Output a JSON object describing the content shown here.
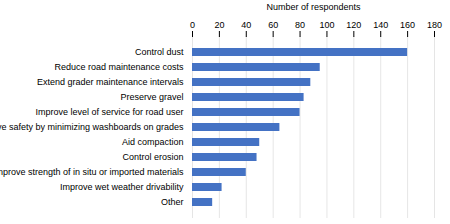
{
  "chart_data": {
    "type": "bar",
    "orientation": "horizontal",
    "categories": [
      "Other",
      "Improve wet weather drivability",
      "Improve strength of in situ or imported materials",
      "Control erosion",
      "Aid compaction",
      "Improve safety by minimizing washboards on grades",
      "Improve level of service for road user",
      "Preserve gravel",
      "Extend grader maintenance intervals",
      "Reduce road maintenance costs",
      "Control dust"
    ],
    "values": [
      15,
      22,
      40,
      48,
      50,
      65,
      80,
      83,
      88,
      95,
      160
    ],
    "color": "#4472C4",
    "xlabel": "Number of respondents",
    "xlim": [
      0,
      180
    ],
    "xticks": [
      0,
      20,
      40,
      60,
      80,
      100,
      120,
      140,
      160,
      180
    ],
    "grid": true
  }
}
